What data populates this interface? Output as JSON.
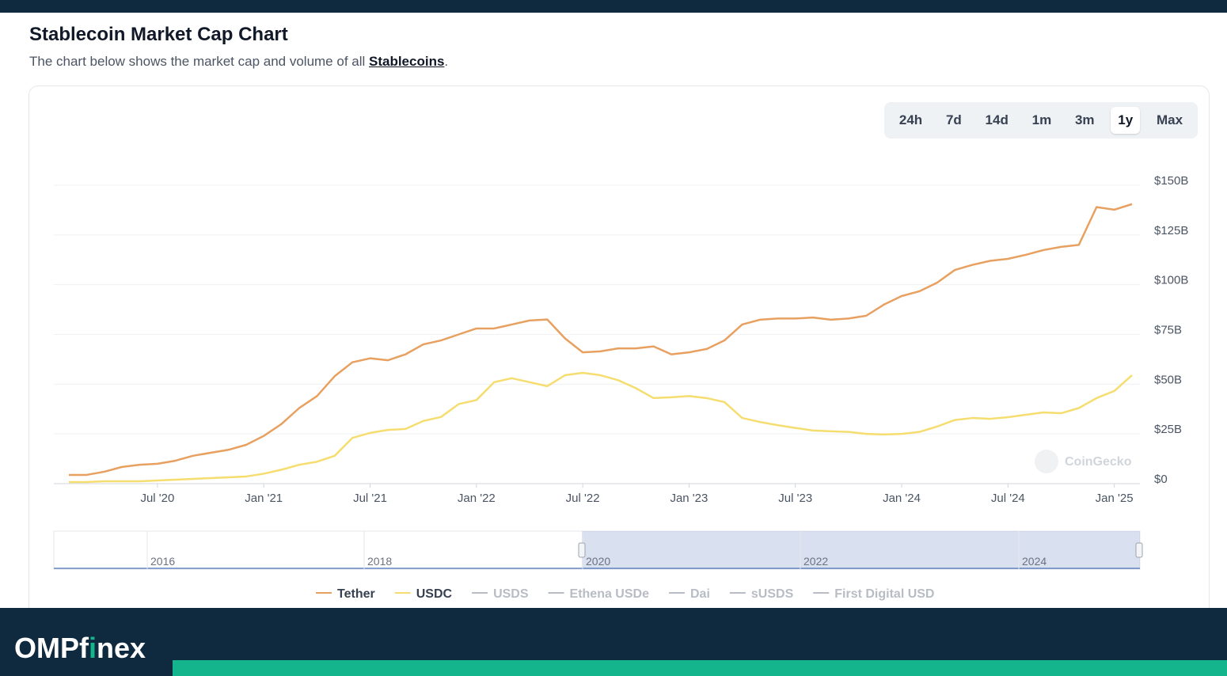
{
  "header": {
    "title": "Stablecoin Market Cap Chart",
    "subtitle": "The chart below shows the market cap and volume of all ",
    "link": "Stablecoins",
    "subtitle_end": "."
  },
  "ranges": {
    "options": [
      "24h",
      "7d",
      "14d",
      "1m",
      "3m",
      "1y",
      "Max"
    ],
    "active": 5
  },
  "chart_data": {
    "type": "line",
    "x": [
      "2020-02",
      "2020-03",
      "2020-04",
      "2020-05",
      "2020-06",
      "2020-07",
      "2020-08",
      "2020-09",
      "2020-10",
      "2020-11",
      "2020-12",
      "2021-01",
      "2021-02",
      "2021-03",
      "2021-04",
      "2021-05",
      "2021-06",
      "2021-07",
      "2021-08",
      "2021-09",
      "2021-10",
      "2021-11",
      "2021-12",
      "2022-01",
      "2022-02",
      "2022-03",
      "2022-04",
      "2022-05",
      "2022-06",
      "2022-07",
      "2022-08",
      "2022-09",
      "2022-10",
      "2022-11",
      "2022-12",
      "2023-01",
      "2023-02",
      "2023-03",
      "2023-04",
      "2023-05",
      "2023-06",
      "2023-07",
      "2023-08",
      "2023-09",
      "2023-10",
      "2023-11",
      "2023-12",
      "2024-01",
      "2024-02",
      "2024-03",
      "2024-04",
      "2024-05",
      "2024-06",
      "2024-07",
      "2024-08",
      "2024-09",
      "2024-10",
      "2024-11",
      "2024-12",
      "2025-01",
      "2025-02"
    ],
    "series": [
      {
        "name": "Tether",
        "color": "#e8a060",
        "values": [
          4.4,
          4.4,
          6,
          8.4,
          9.5,
          10,
          11.5,
          14,
          15.5,
          17,
          19.5,
          24,
          30,
          38,
          44,
          54,
          61,
          63,
          62,
          65,
          70,
          72,
          75,
          78,
          78,
          80,
          82,
          82.5,
          73,
          66,
          66.5,
          68,
          68,
          69,
          65,
          66,
          67.7,
          72,
          80,
          82.4,
          83,
          83,
          83.5,
          82.4,
          83,
          84.4,
          90,
          94.3,
          96.7,
          101,
          107.4,
          110,
          112,
          113,
          115,
          117.4,
          119,
          120,
          139,
          137.7,
          140.5
        ]
      },
      {
        "name": "USDC",
        "color": "#f5dd70",
        "values": [
          0.8,
          0.8,
          1.2,
          1.2,
          1.2,
          1.6,
          2,
          2.4,
          2.8,
          3.2,
          3.6,
          5,
          7,
          9.5,
          11,
          14,
          23,
          25.5,
          27,
          27.5,
          31.5,
          33.5,
          40,
          42,
          51,
          53,
          51,
          49,
          54.5,
          55.7,
          54.5,
          52,
          48,
          43,
          43.4,
          44,
          43,
          41,
          33,
          31,
          29.4,
          28,
          26.7,
          26.3,
          26,
          25,
          24.7,
          25,
          26,
          28.7,
          32,
          33,
          32.6,
          33.4,
          34.6,
          35.8,
          35.4,
          38,
          43,
          46.6,
          54.5
        ]
      }
    ],
    "inactive_legend": {
      "names": [
        "USDS",
        "Ethena USDe",
        "Dai",
        "sUSDS",
        "First Digital USD"
      ],
      "color": "#b8bcc4"
    },
    "xlim": [
      "2020-02",
      "2025-02"
    ],
    "xticks": [
      {
        "value": "2020-07",
        "label": "Jul '20"
      },
      {
        "value": "2021-01",
        "label": "Jan '21"
      },
      {
        "value": "2021-07",
        "label": "Jul '21"
      },
      {
        "value": "2022-01",
        "label": "Jan '22"
      },
      {
        "value": "2022-07",
        "label": "Jul '22"
      },
      {
        "value": "2023-01",
        "label": "Jan '23"
      },
      {
        "value": "2023-07",
        "label": "Jul '23"
      },
      {
        "value": "2024-01",
        "label": "Jan '24"
      },
      {
        "value": "2024-07",
        "label": "Jul '24"
      },
      {
        "value": "2025-01",
        "label": "Jan '25"
      }
    ],
    "ylim": [
      0,
      150
    ],
    "yticks": [
      {
        "value": 0,
        "label": "$0"
      },
      {
        "value": 25,
        "label": "$25B"
      },
      {
        "value": 50,
        "label": "$50B"
      },
      {
        "value": 75,
        "label": "$75B"
      },
      {
        "value": 100,
        "label": "$100B"
      },
      {
        "value": 125,
        "label": "$125B"
      },
      {
        "value": 150,
        "label": "$150B"
      }
    ],
    "grid": true,
    "watermark": "CoinGecko",
    "navigator_labels": [
      "2016",
      "2018",
      "2020",
      "2022",
      "2024"
    ]
  },
  "footer": {
    "brand": [
      "OMPf",
      "i",
      "nex"
    ]
  }
}
